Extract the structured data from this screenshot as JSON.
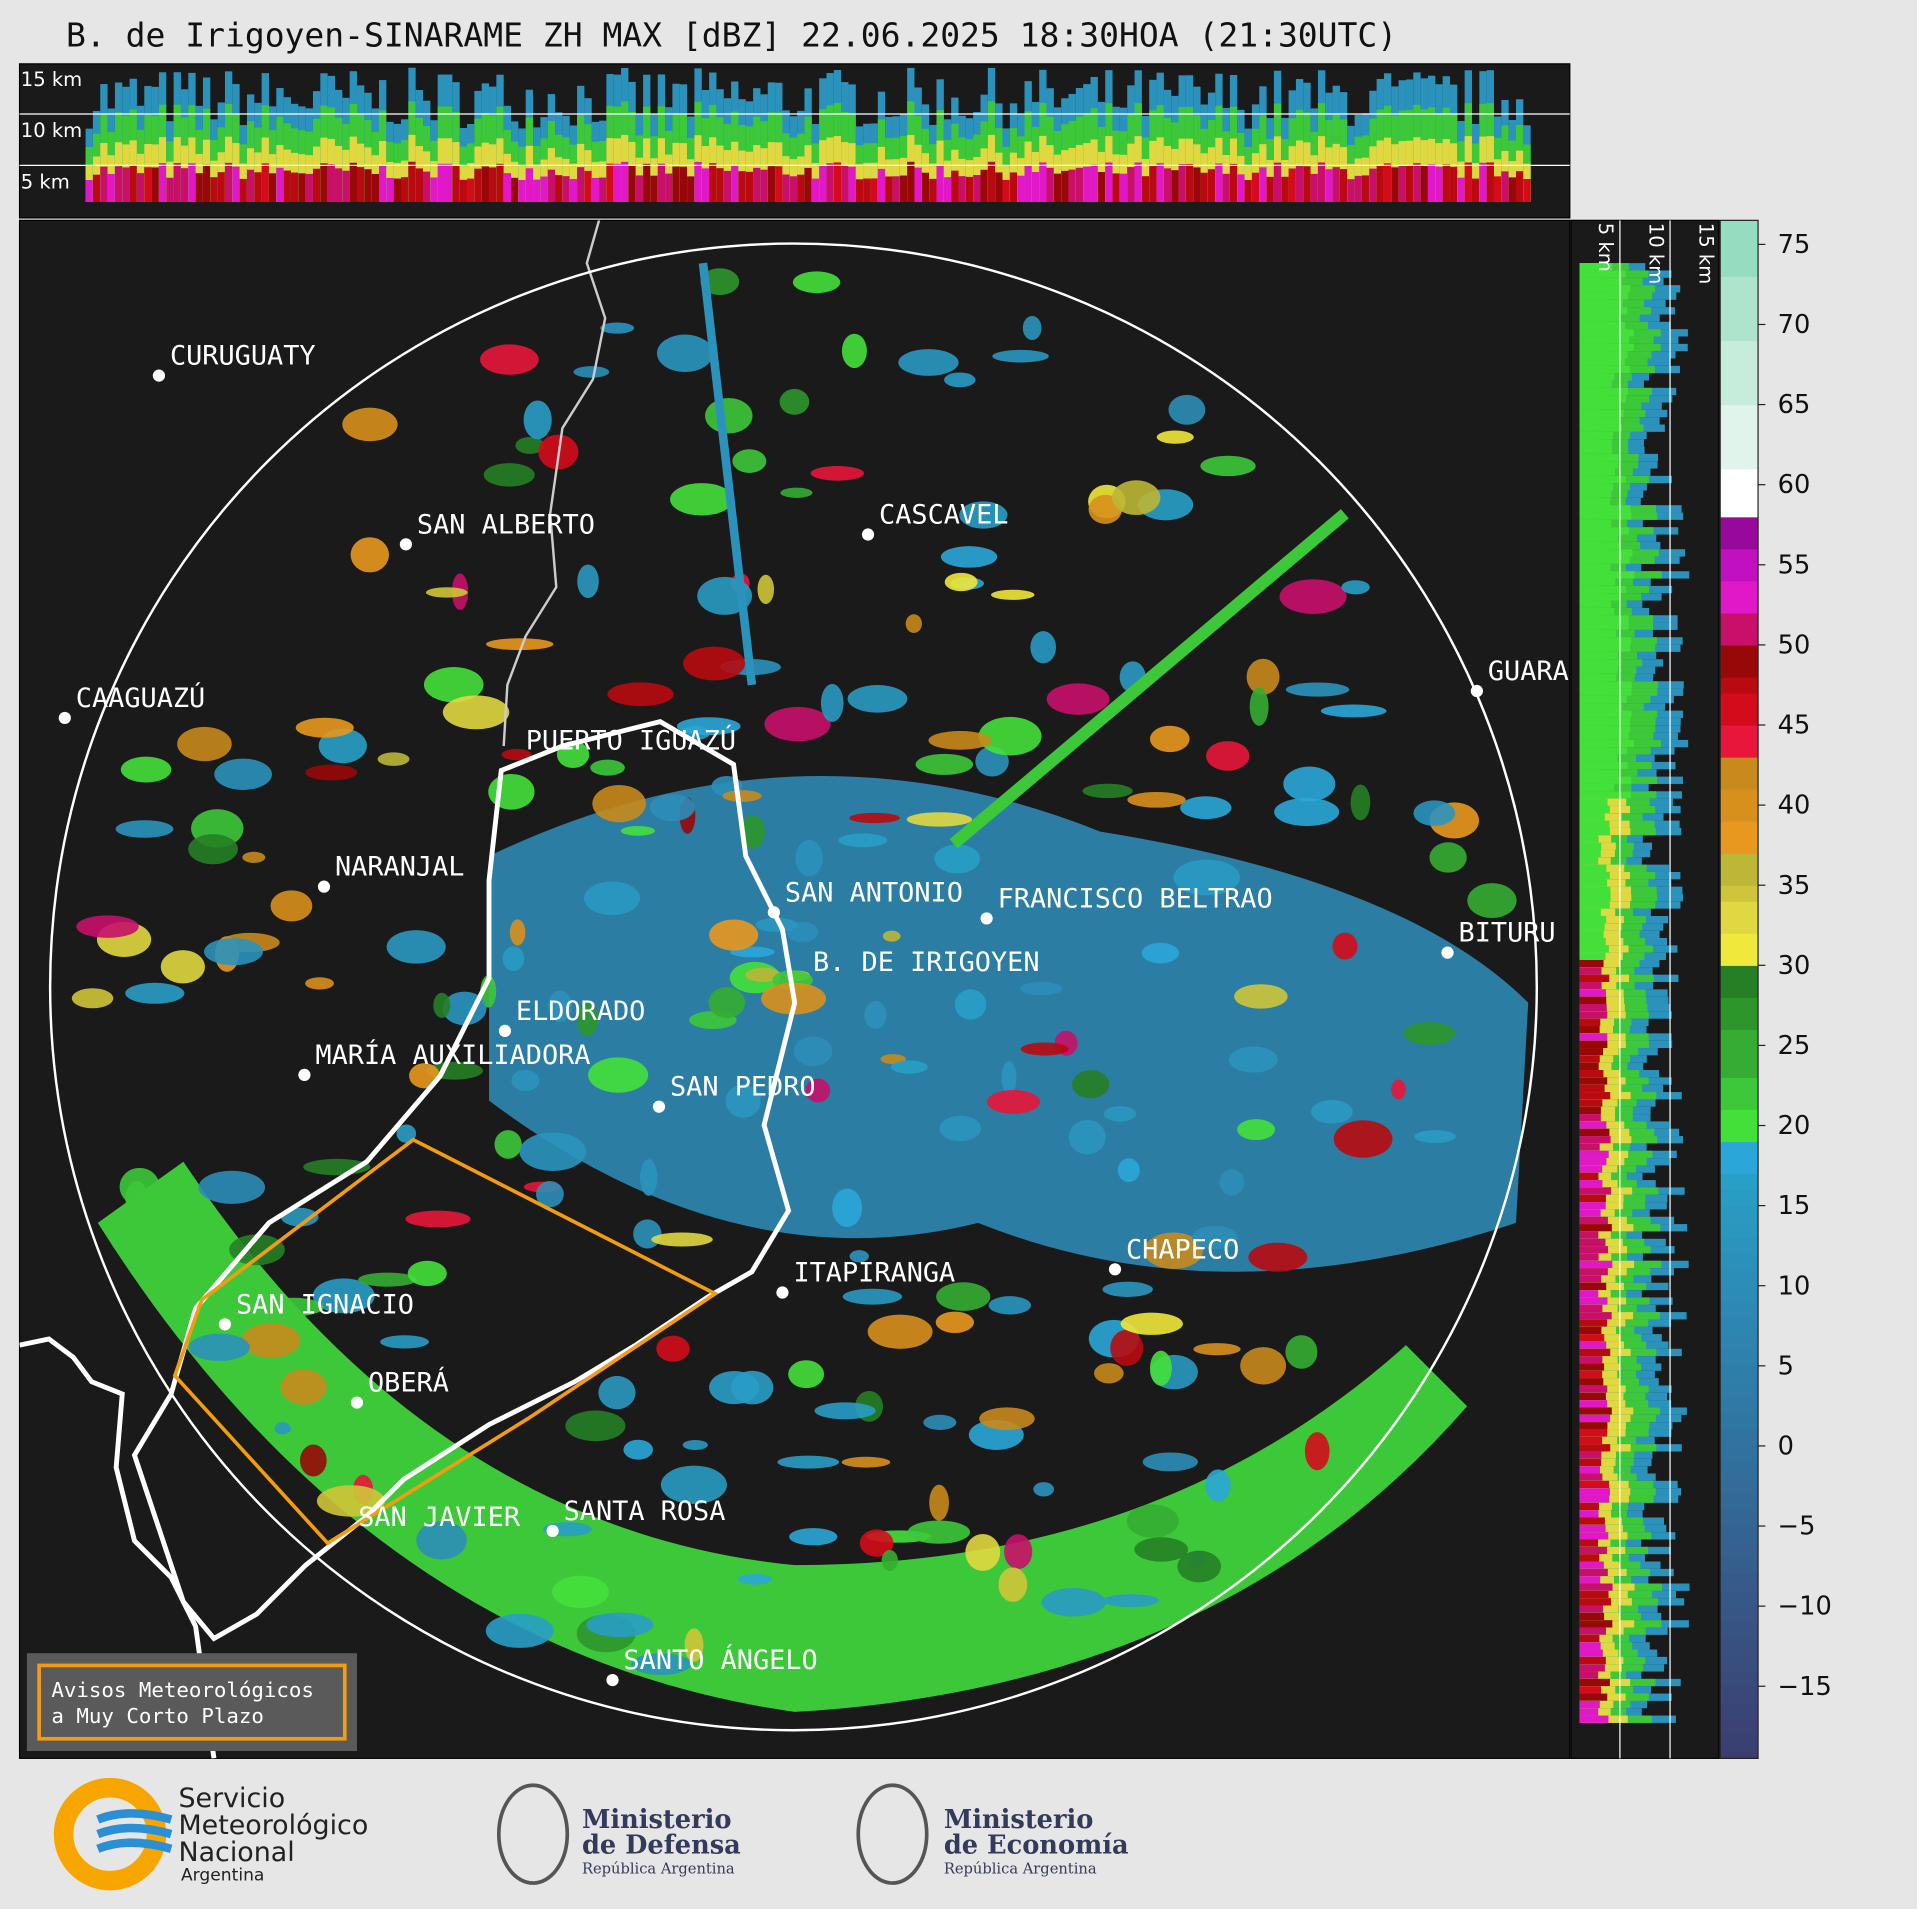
{
  "title": "B. de Irigoyen-SINARAME ZH MAX [dBZ] 22.06.2025 18:30HOA (21:30UTC)",
  "top_panel_labels": [
    "15 km",
    "10 km",
    "5 km"
  ],
  "side_panel_labels": [
    "5 km",
    "10 km",
    "15 km"
  ],
  "cities": [
    "CURUGUATY",
    "SAN ALBERTO",
    "CAAGUAZÚ",
    "CASCAVEL",
    "GUARA",
    "PUERTO IGUAZÚ",
    "NARANJAL",
    "SAN ANTONIO",
    "FRANCISCO BELTRAO",
    "BITURU",
    "B. DE IRIGOYEN",
    "ELDORADO",
    "MARÍA AUXILIADORA",
    "SAN PEDRO",
    "ITAPIRANGA",
    "CHAPECO",
    "SAN IGNACIO",
    "OBERÁ",
    "SAN JAVIER",
    "SANTA ROSA",
    "SANTO ÁNGELO"
  ],
  "colorbar": {
    "lim": [
      -19.5,
      76.5
    ],
    "ticks": [
      75,
      70,
      65,
      60,
      55,
      50,
      45,
      40,
      35,
      30,
      25,
      20,
      15,
      10,
      5,
      0,
      {
        "value": -5,
        "label": "−5"
      },
      {
        "value": -10,
        "label": "−10"
      },
      {
        "value": -15,
        "label": "−15"
      }
    ]
  },
  "legend": [
    "Avisos Meteorológicos",
    "a Muy Corto Plazo"
  ],
  "logos": {
    "smn": [
      "Servicio",
      "Meteorológico",
      "Nacional",
      "Argentina"
    ],
    "defensa": [
      "Ministerio",
      "de Defensa",
      "República Argentina"
    ],
    "economia": [
      "Ministerio",
      "de Economía",
      "República Argentina"
    ]
  }
}
